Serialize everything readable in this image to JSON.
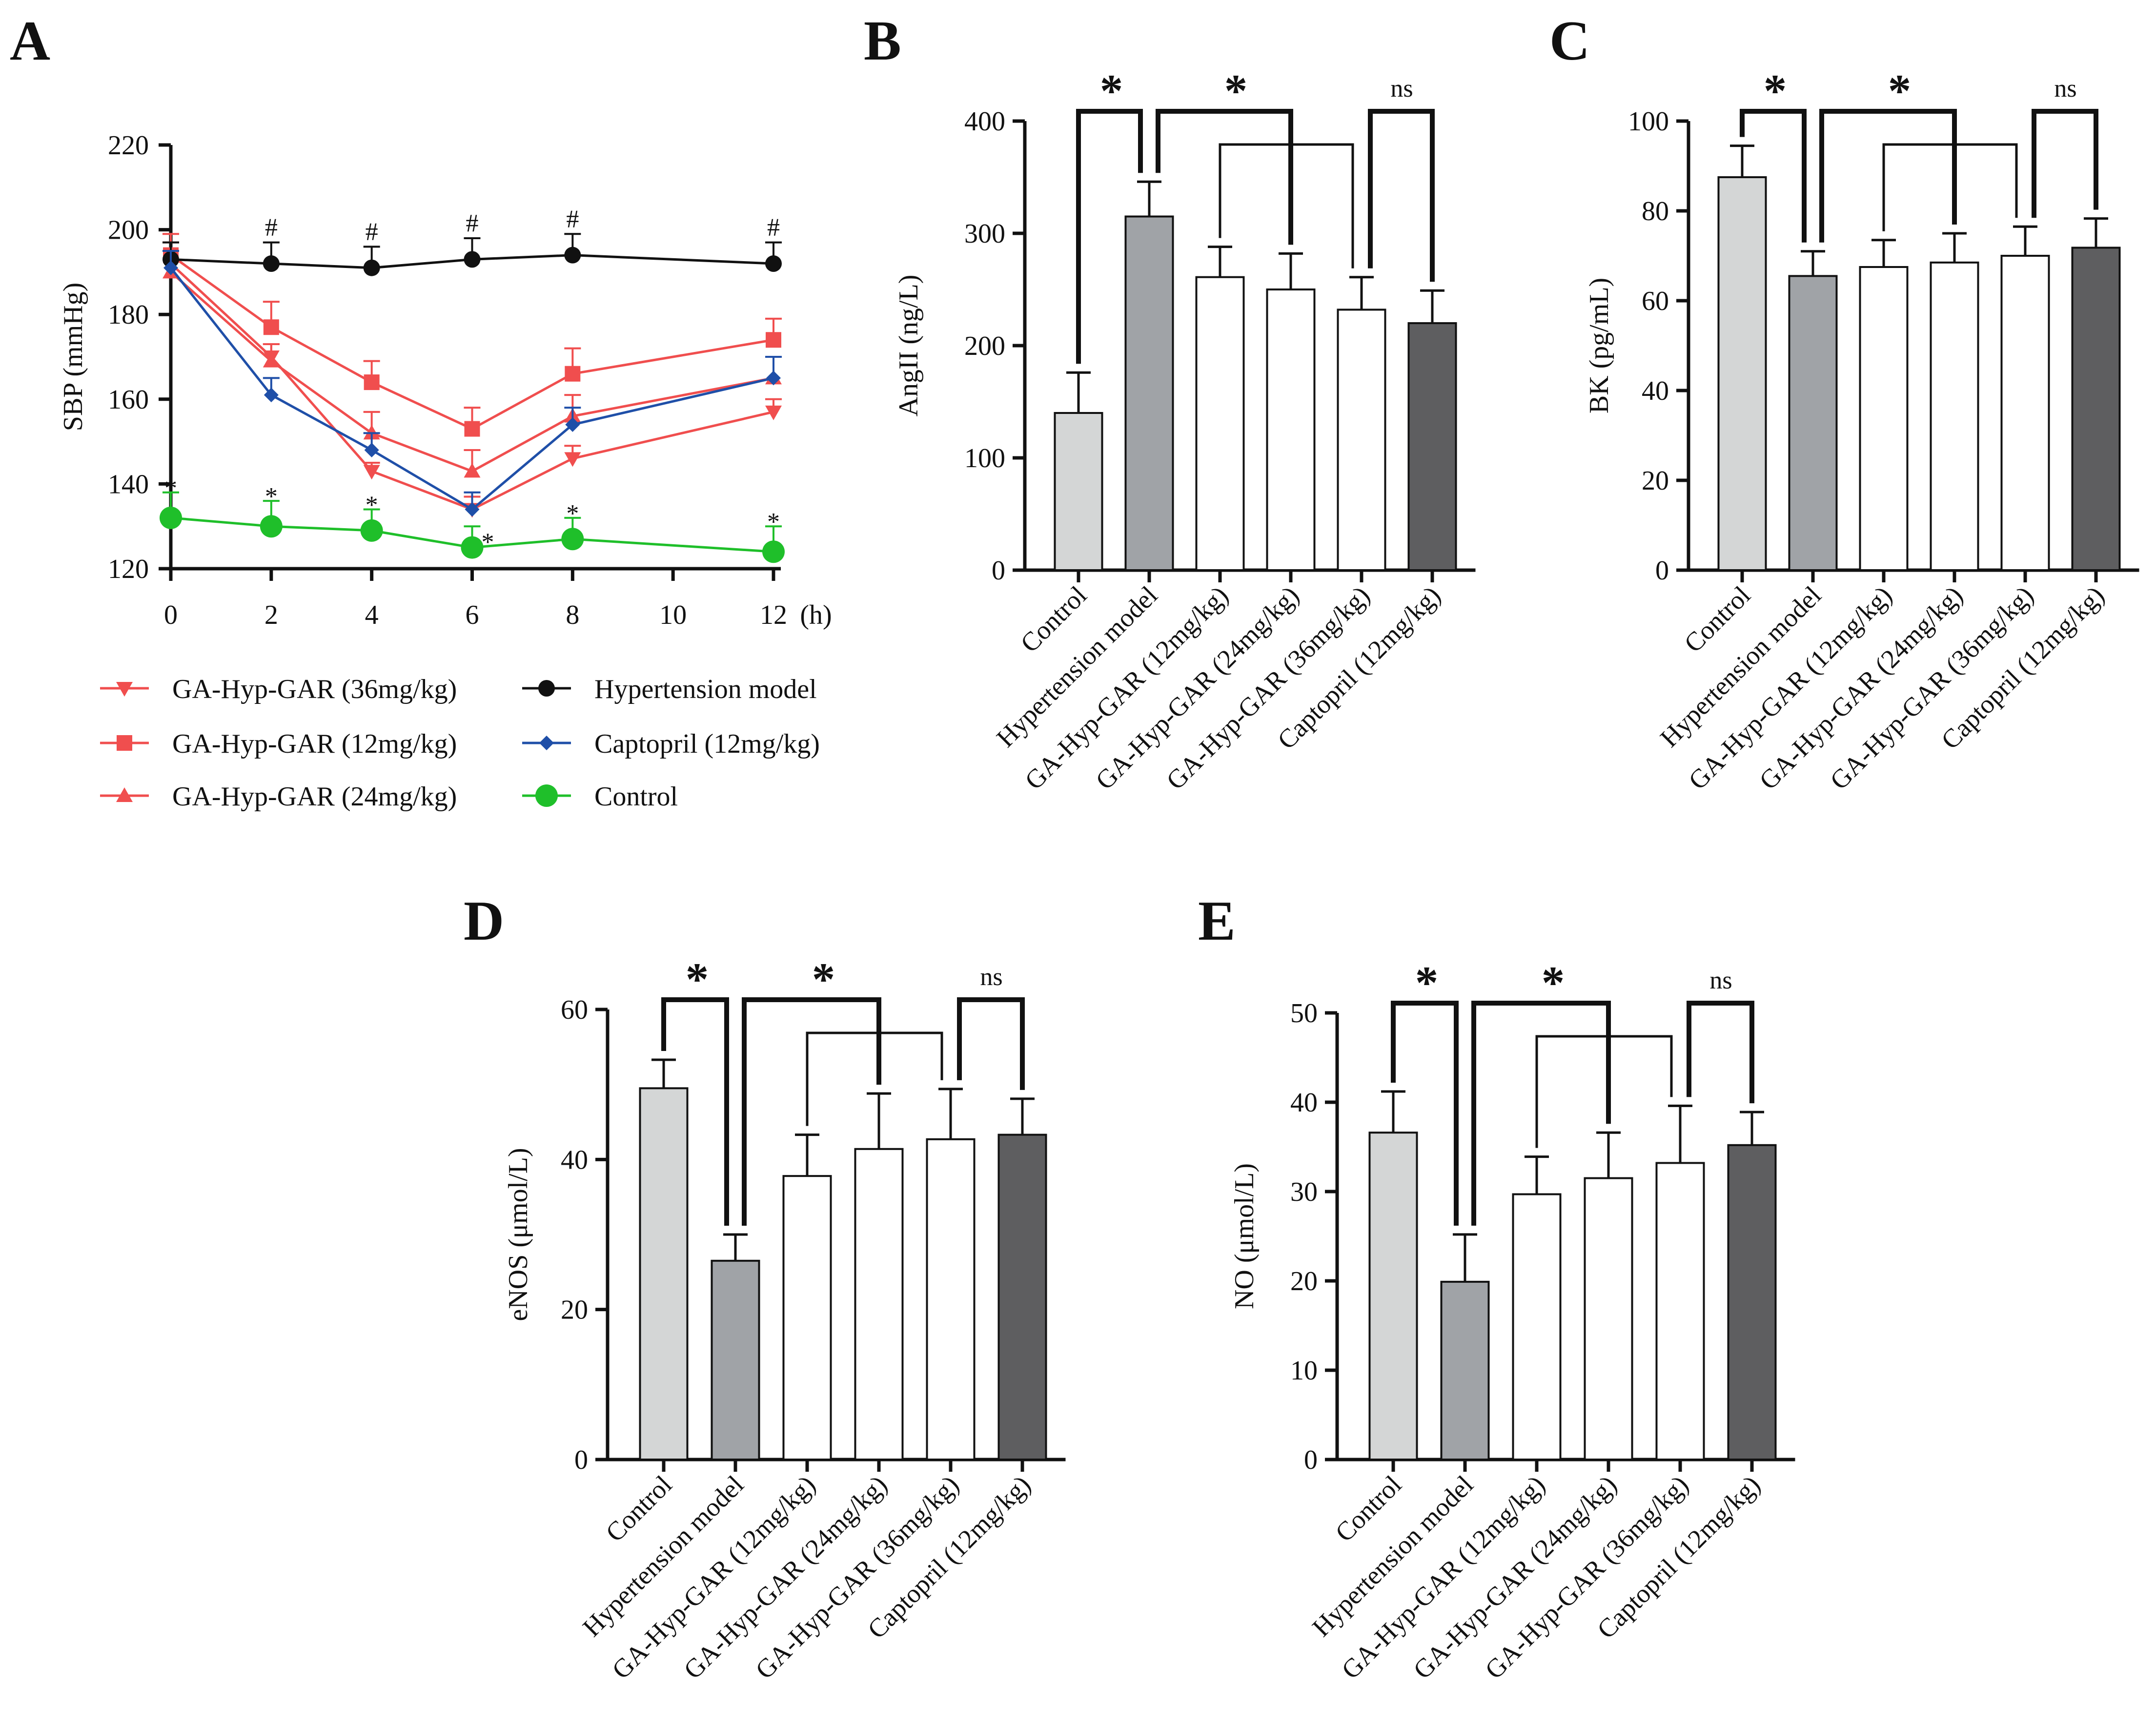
{
  "chart_data": [
    {
      "panel": "A",
      "type": "line",
      "ylabel": "SBP (mmHg)",
      "x": [
        0,
        2,
        4,
        6,
        8,
        12
      ],
      "x_ticks": [
        "0",
        "2",
        "4",
        "6",
        "8",
        "10",
        "12"
      ],
      "x_unit": "(h)",
      "ylim": [
        120,
        220
      ],
      "y_ticks": [
        120,
        140,
        160,
        180,
        200,
        220
      ],
      "hash_mark": "#",
      "star_mark": "*",
      "series": [
        {
          "name": "GA-Hyp-GAR (36mg/kg)",
          "color": "#f04e4e",
          "marker": "tri-down",
          "values": [
            192,
            170,
            143,
            134,
            146,
            157
          ],
          "err": [
            5,
            3,
            2,
            3,
            3,
            3
          ]
        },
        {
          "name": "GA-Hyp-GAR (12mg/kg)",
          "color": "#f04e4e",
          "marker": "square",
          "values": [
            194,
            177,
            164,
            153,
            166,
            174
          ],
          "err": [
            5,
            6,
            5,
            5,
            6,
            5
          ]
        },
        {
          "name": "GA-Hyp-GAR (24mg/kg)",
          "color": "#f04e4e",
          "marker": "tri-up",
          "values": [
            190,
            169,
            152,
            143,
            156,
            165
          ],
          "err": [
            5,
            4,
            5,
            5,
            5,
            5
          ]
        },
        {
          "name": "Hypertension model",
          "color": "#111111",
          "marker": "circle",
          "values": [
            193,
            192,
            191,
            193,
            194,
            192
          ],
          "err": [
            4,
            5,
            5,
            5,
            5,
            5
          ]
        },
        {
          "name": "Captopril (12mg/kg)",
          "color": "#1f4fa8",
          "marker": "diamond",
          "values": [
            191,
            161,
            148,
            134,
            154,
            165
          ],
          "err": [
            4,
            4,
            4,
            4,
            4,
            5
          ]
        },
        {
          "name": "Control",
          "color": "#1fbf2a",
          "marker": "circle-big",
          "values": [
            132,
            130,
            129,
            125,
            127,
            124
          ],
          "err": [
            6,
            6,
            5,
            5,
            5,
            6
          ]
        }
      ]
    },
    {
      "panel": "B",
      "type": "bar",
      "ylabel": "AngII (ng/L)",
      "ylim": [
        0,
        400
      ],
      "y_ticks": [
        0,
        100,
        200,
        300,
        400
      ],
      "values": [
        140,
        315,
        261,
        250,
        232,
        220
      ],
      "err": [
        36,
        31,
        27,
        32,
        29,
        29
      ],
      "sig": [
        "*",
        "*",
        "ns"
      ]
    },
    {
      "panel": "C",
      "type": "bar",
      "ylabel": "BK (pg/mL)",
      "ylim": [
        0,
        100
      ],
      "y_ticks": [
        0,
        20,
        40,
        60,
        80,
        100
      ],
      "values": [
        87.5,
        65.5,
        67.5,
        68.5,
        70,
        71.8
      ],
      "err": [
        7,
        5.5,
        6,
        6.5,
        6.5,
        6.5
      ],
      "sig": [
        "*",
        "*",
        "ns"
      ]
    },
    {
      "panel": "D",
      "type": "bar",
      "ylabel": "eNOS (μmol/L)",
      "ylim": [
        0,
        60
      ],
      "y_ticks": [
        0,
        20,
        40,
        60
      ],
      "values": [
        49.5,
        26.5,
        37.8,
        41.4,
        42.7,
        43.3
      ],
      "err": [
        3.8,
        3.5,
        5.5,
        7.4,
        6.7,
        4.8
      ],
      "sig": [
        "*",
        "*",
        "ns"
      ]
    },
    {
      "panel": "E",
      "type": "bar",
      "ylabel": "NO (μmol/L)",
      "ylim": [
        0,
        50
      ],
      "y_ticks": [
        0,
        10,
        20,
        30,
        40,
        50
      ],
      "values": [
        36.6,
        19.9,
        29.7,
        31.5,
        33.2,
        35.2
      ],
      "err": [
        4.6,
        5.3,
        4.2,
        5.1,
        6.4,
        3.7
      ],
      "sig": [
        "*",
        "*",
        "ns"
      ]
    }
  ],
  "categories": [
    "Control",
    "Hypertension model",
    "GA-Hyp-GAR (12mg/kg)",
    "GA-Hyp-GAR (24mg/kg)",
    "GA-Hyp-GAR (36mg/kg)",
    "Captopril (12mg/kg)"
  ],
  "bar_colors": [
    "#d4d6d6",
    "#a0a3a7",
    "#ffffff",
    "#ffffff",
    "#ffffff",
    "#5e5e60"
  ]
}
